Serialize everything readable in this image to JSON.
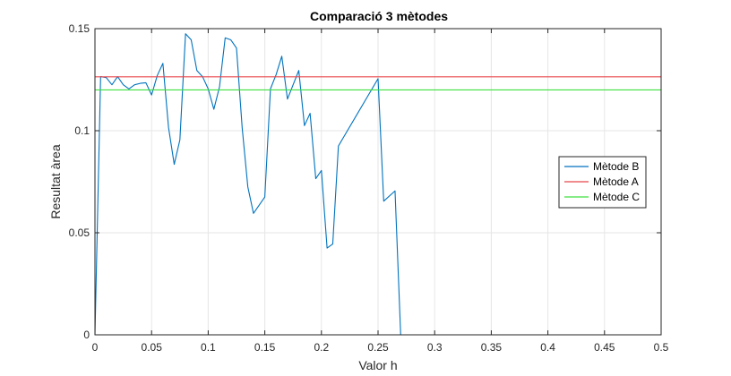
{
  "chart_data": {
    "type": "line",
    "title": "Comparació 3 mètodes",
    "xlabel": "Valor h",
    "ylabel": "Resultat àrea",
    "xlim": [
      0,
      0.5
    ],
    "ylim": [
      0,
      0.15
    ],
    "xticks": [
      0,
      0.05,
      0.1,
      0.15,
      0.2,
      0.25,
      0.3,
      0.35,
      0.4,
      0.45,
      0.5
    ],
    "xtick_labels": [
      "0",
      "0.05",
      "0.1",
      "0.15",
      "0.2",
      "0.25",
      "0.3",
      "0.35",
      "0.4",
      "0.45",
      "0.5"
    ],
    "yticks": [
      0,
      0.05,
      0.1,
      0.15
    ],
    "ytick_labels": [
      "0",
      "0.05",
      "0.1",
      "0.15"
    ],
    "grid": true,
    "legend_position": "right",
    "series": [
      {
        "name": "Mètode B",
        "color": "#0072BD",
        "x": [
          0.0,
          0.005,
          0.01,
          0.015,
          0.02,
          0.025,
          0.03,
          0.035,
          0.04,
          0.045,
          0.05,
          0.055,
          0.06,
          0.065,
          0.07,
          0.075,
          0.08,
          0.085,
          0.09,
          0.095,
          0.1,
          0.105,
          0.11,
          0.115,
          0.12,
          0.125,
          0.13,
          0.135,
          0.14,
          0.145,
          0.15,
          0.155,
          0.16,
          0.165,
          0.17,
          0.175,
          0.18,
          0.185,
          0.19,
          0.195,
          0.2,
          0.205,
          0.21,
          0.215,
          0.25,
          0.255,
          0.265,
          0.27,
          0.5
        ],
        "y": [
          0.0,
          0.1265,
          0.126,
          0.1225,
          0.1265,
          0.1225,
          0.1205,
          0.1225,
          0.1232,
          0.1235,
          0.1175,
          0.127,
          0.133,
          0.1015,
          0.0835,
          0.0955,
          0.1475,
          0.1445,
          0.1295,
          0.1265,
          0.1205,
          0.1105,
          0.1215,
          0.1455,
          0.1445,
          0.1405,
          0.1015,
          0.0725,
          0.0595,
          0.0635,
          0.0675,
          0.1205,
          0.1275,
          0.1365,
          0.1155,
          0.1225,
          0.1295,
          0.1025,
          0.1085,
          0.0765,
          0.0805,
          0.0425,
          0.0445,
          0.0925,
          0.1255,
          0.0655,
          0.0705,
          0.0,
          0.0
        ]
      },
      {
        "name": "Mètode A",
        "color": "#E8474A",
        "x": [
          0,
          0.5
        ],
        "y": [
          0.1264,
          0.1264
        ]
      },
      {
        "name": "Mètode C",
        "color": "#3DE03D",
        "x": [
          0,
          0.5
        ],
        "y": [
          0.12,
          0.12
        ]
      }
    ]
  }
}
